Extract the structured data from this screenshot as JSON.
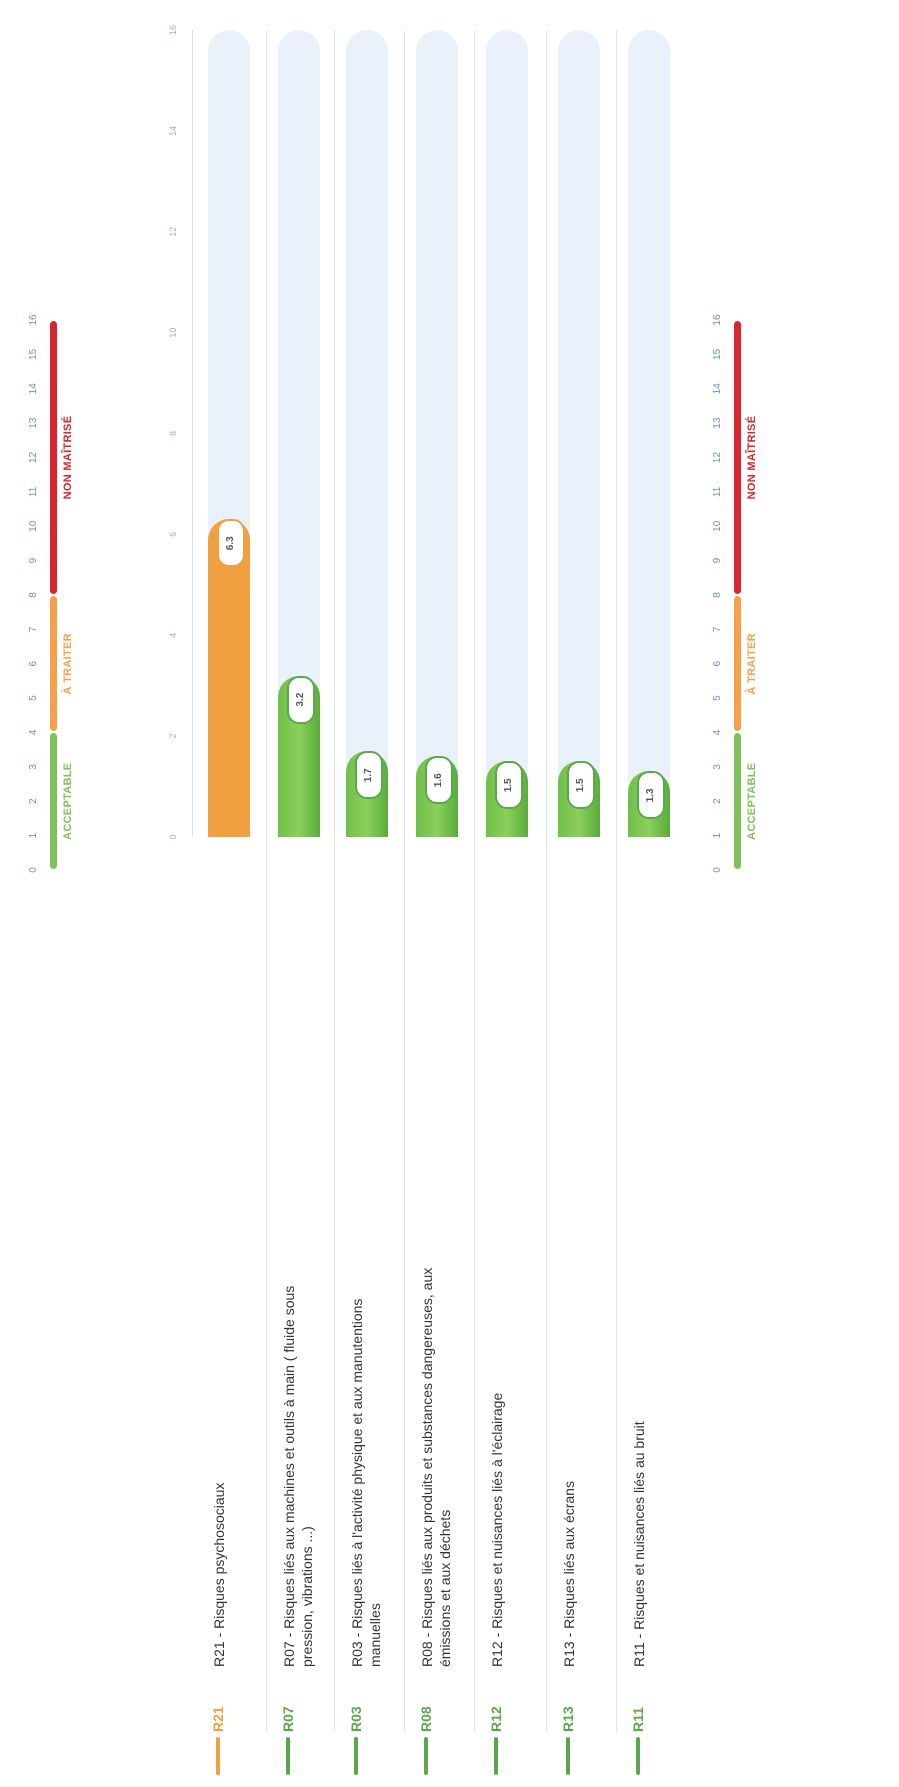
{
  "legend": {
    "ticks": [
      "0",
      "1",
      "2",
      "3",
      "4",
      "5",
      "6",
      "7",
      "8",
      "9",
      "10",
      "11",
      "12",
      "13",
      "14",
      "15",
      "16"
    ],
    "segments": [
      {
        "label": "ACCEPTABLE",
        "from": 0,
        "to": 4,
        "color": "#7ec05b"
      },
      {
        "label": "À TRAITER",
        "from": 4,
        "to": 8,
        "color": "#f5a04a"
      },
      {
        "label": "NON MAÎTRISÉ",
        "from": 8,
        "to": 16,
        "color": "#d9252f"
      }
    ]
  },
  "chart_data": {
    "type": "bar",
    "orientation": "horizontal",
    "categories": [
      "R21 - Risques psychosociaux",
      "R07 - Risques liés aux machines et outils à main ( fluide sous pression, vibrations ...)",
      "R03 - Risques liés à l'activité physique et aux manutentions manuelles",
      "R08 - Risques liés aux produits et substances dangereuses, aux émissions et aux déchets",
      "R12 - Risques et nuisances liés à l'éclairage",
      "R13 - Risques liés aux écrans",
      "R11 - Risques et nuisances liés au bruit"
    ],
    "values": [
      6.3,
      3.2,
      1.7,
      1.6,
      1.5,
      1.5,
      1.3
    ],
    "xlim": [
      0,
      16
    ],
    "axis_ticks": [
      "0",
      "2",
      "4",
      "6",
      "8",
      "10",
      "12",
      "14",
      "16"
    ],
    "grid": false
  },
  "rows": [
    {
      "code": "R21",
      "label": "R21 - Risques psychosociaux",
      "value_label": "6.3",
      "status": "orange"
    },
    {
      "code": "R07",
      "label": "R07 - Risques liés aux machines et outils à main ( fluide sous pression, vibrations ...)",
      "value_label": "3.2",
      "status": "green"
    },
    {
      "code": "R03",
      "label": "R03 - Risques liés à l'activité physique et aux manutentions manuelles",
      "value_label": "1.7",
      "status": "green"
    },
    {
      "code": "R08",
      "label": "R08 - Risques liés aux produits et substances dangereuses, aux émissions et aux déchets",
      "value_label": "1.6",
      "status": "green"
    },
    {
      "code": "R12",
      "label": "R12 - Risques et nuisances liés à l'éclairage",
      "value_label": "1.5",
      "status": "green"
    },
    {
      "code": "R13",
      "label": "R13 - Risques liés aux écrans",
      "value_label": "1.5",
      "status": "green"
    },
    {
      "code": "R11",
      "label": "R11 - Risques et nuisances liés au bruit",
      "value_label": "1.3",
      "status": "green"
    }
  ],
  "colors": {
    "green": "#5aa84a",
    "orange": "#f0a040",
    "red": "#d9252f",
    "track": "#e9f1fb",
    "tick_blue": "#6b8fc0"
  }
}
